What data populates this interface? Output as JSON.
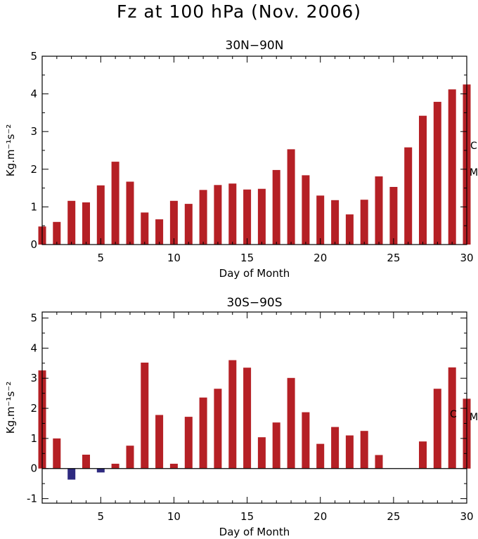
{
  "title": "Fz at 100 hPa (Nov. 2006)",
  "colors": {
    "positive": "#b52025",
    "negative": "#2e2a80",
    "axis": "#000000"
  },
  "chart_data": [
    {
      "type": "bar",
      "title": "30N−90N",
      "xlabel": "Day of Month",
      "ylabel": "Kg.m⁻¹s⁻²",
      "xlim": [
        1,
        30
      ],
      "ylim": [
        0,
        5
      ],
      "xticks": [
        5,
        10,
        15,
        20,
        25,
        30
      ],
      "yticks": [
        0,
        1,
        2,
        3,
        4,
        5
      ],
      "x": [
        1,
        2,
        3,
        4,
        5,
        6,
        7,
        8,
        9,
        10,
        11,
        12,
        13,
        14,
        15,
        16,
        17,
        18,
        19,
        20,
        21,
        22,
        23,
        24,
        25,
        26,
        27,
        28,
        29,
        30
      ],
      "values": [
        0.48,
        0.6,
        1.16,
        1.12,
        1.57,
        2.2,
        1.67,
        0.85,
        0.67,
        1.16,
        1.08,
        1.45,
        1.58,
        1.62,
        1.46,
        1.48,
        1.98,
        2.53,
        1.84,
        1.3,
        1.18,
        0.8,
        1.19,
        1.81,
        1.53,
        2.58,
        3.42,
        3.79,
        4.12,
        4.25
      ],
      "side_labels": [
        "C",
        "M"
      ],
      "grid": false
    },
    {
      "type": "bar",
      "title": "30S−90S",
      "xlabel": "Day of Month",
      "ylabel": "Kg.m⁻¹s⁻²",
      "xlim": [
        1,
        30
      ],
      "ylim": [
        -1.15,
        5.2
      ],
      "xticks": [
        5,
        10,
        15,
        20,
        25,
        30
      ],
      "yticks": [
        -1,
        0,
        1,
        2,
        3,
        4,
        5
      ],
      "x": [
        1,
        2,
        3,
        4,
        5,
        6,
        7,
        8,
        9,
        10,
        11,
        12,
        13,
        14,
        15,
        16,
        17,
        18,
        19,
        20,
        21,
        22,
        23,
        24,
        25,
        26,
        27,
        28,
        29,
        30
      ],
      "values": [
        3.26,
        1.0,
        -0.37,
        0.46,
        -0.13,
        0.16,
        0.76,
        3.52,
        1.78,
        0.16,
        1.72,
        2.36,
        2.65,
        3.6,
        3.35,
        1.04,
        1.53,
        3.01,
        1.87,
        0.82,
        1.38,
        1.1,
        1.25,
        0.45,
        0,
        0,
        0.9,
        2.65,
        3.36,
        2.32
      ],
      "side_labels": [
        "C",
        "M"
      ],
      "grid": false
    }
  ]
}
